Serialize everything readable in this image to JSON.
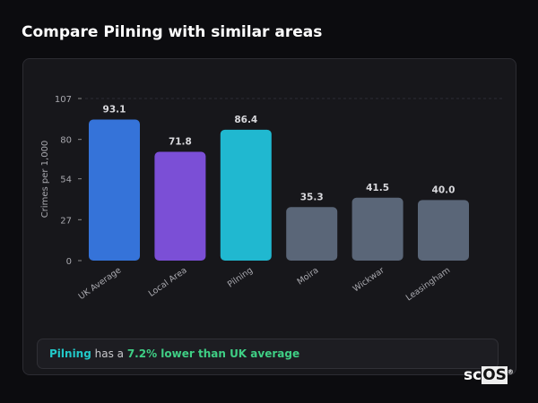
{
  "header": {
    "title": "Compare Pilning with similar areas"
  },
  "chart_data": {
    "type": "bar",
    "title": "",
    "xlabel": "",
    "ylabel": "Crimes per 1,000",
    "ylim": [
      0,
      107
    ],
    "yticks": [
      0,
      27,
      54,
      80,
      107
    ],
    "categories": [
      "UK Average",
      "Local Area",
      "Pilning",
      "Moira",
      "Wickwar",
      "Leasingham"
    ],
    "values": [
      93.1,
      71.8,
      86.4,
      35.3,
      41.5,
      40.0
    ],
    "value_labels": [
      "93.1",
      "71.8",
      "86.4",
      "35.3",
      "41.5",
      "40.0"
    ],
    "colors": [
      "#3573d9",
      "#7b4fd6",
      "#20b8d0",
      "#5a6678",
      "#5a6678",
      "#5a6678"
    ],
    "grid": "dashed horizontal"
  },
  "footer": {
    "area": "Pilning",
    "mid": " has a ",
    "highlight": "7.2% lower than UK average"
  },
  "logo": {
    "text": "scOS"
  }
}
